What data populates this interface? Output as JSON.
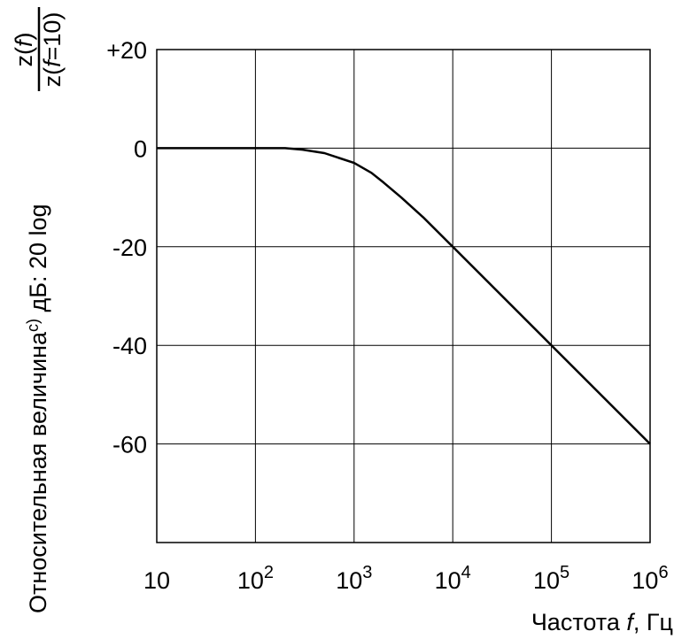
{
  "chart_data": {
    "type": "line",
    "x_scale": "log",
    "xlim": [
      10,
      1000000
    ],
    "ylim": [
      -80,
      20
    ],
    "grid": true,
    "x_ticks": [
      10,
      100,
      1000,
      10000,
      100000,
      1000000
    ],
    "x_tick_labels": [
      {
        "base": "10",
        "exp": ""
      },
      {
        "base": "10",
        "exp": "2"
      },
      {
        "base": "10",
        "exp": "3"
      },
      {
        "base": "10",
        "exp": "4"
      },
      {
        "base": "10",
        "exp": "5"
      },
      {
        "base": "10",
        "exp": "6"
      }
    ],
    "y_ticks": [
      20,
      0,
      -20,
      -40,
      -60
    ],
    "y_tick_labels": [
      "+20",
      "0",
      "-20",
      "-40",
      "-60"
    ],
    "xlabel": {
      "text": "Частота ",
      "var": "f",
      "unit": ", Гц"
    },
    "ylabel": {
      "prefix": "Относительная величина",
      "superscript": "c)",
      "suffix": " дБ: 20 log",
      "numerator": {
        "pre": "z(",
        "var": "f",
        "post": ")"
      },
      "denominator": {
        "pre": "z(",
        "var": "f",
        "post": "=10)"
      }
    },
    "series": [
      {
        "color": "#000000",
        "x": [
          10,
          100,
          200,
          300,
          500,
          1000,
          1500,
          2000,
          3000,
          5000,
          10000,
          100000,
          1000000
        ],
        "y": [
          0,
          0,
          0,
          -0.3,
          -1,
          -3,
          -5,
          -7,
          -10,
          -14,
          -20,
          -40,
          -60
        ]
      }
    ]
  }
}
